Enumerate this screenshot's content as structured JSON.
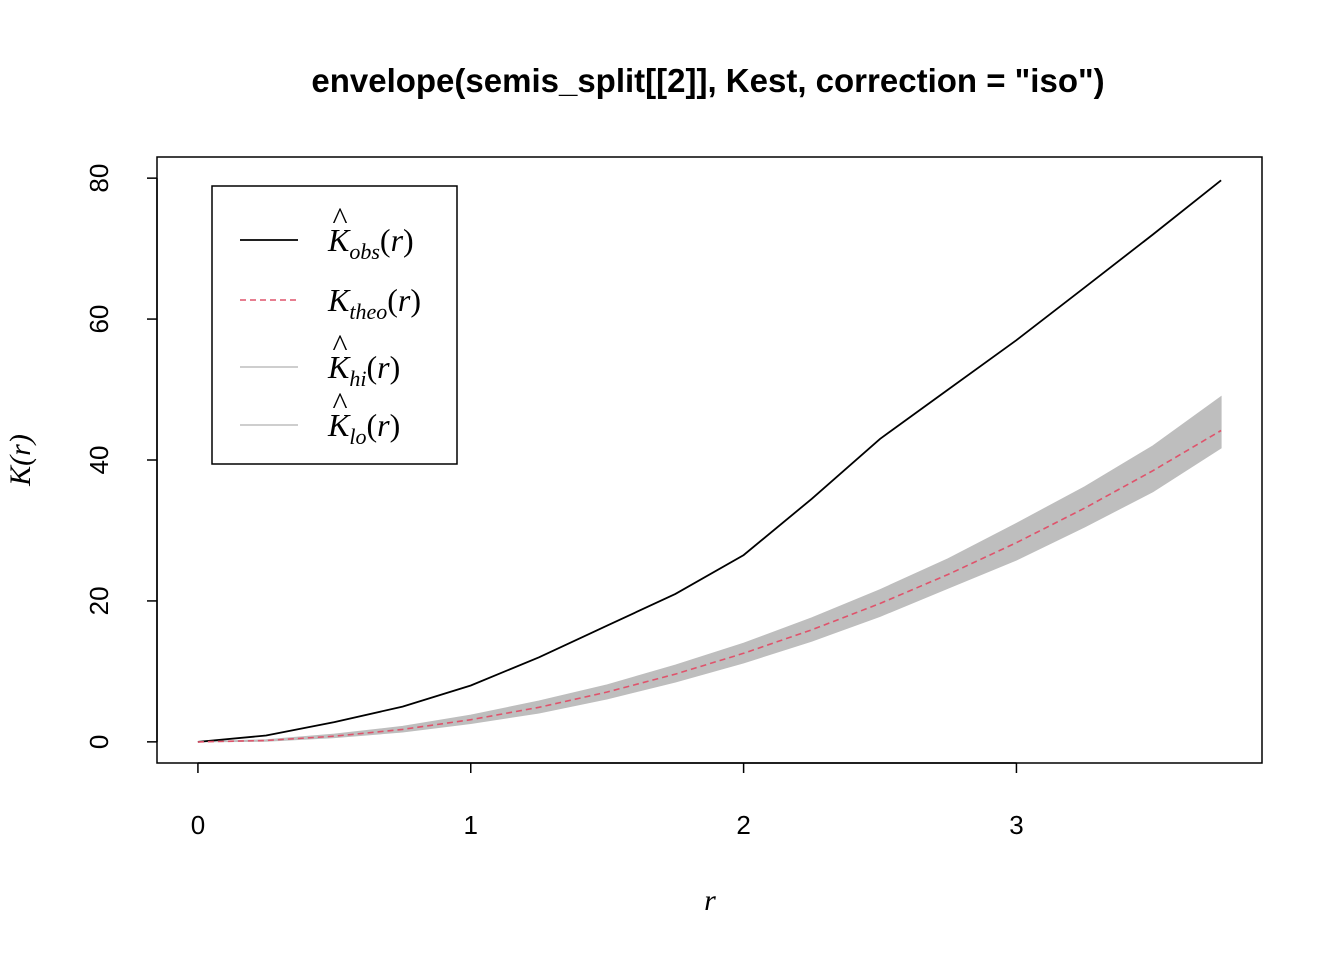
{
  "chart_data": {
    "type": "line",
    "title": "envelope(semis_split[[2]], Kest, correction = \"iso\")",
    "xlabel": "r",
    "ylabel": "K(r)",
    "xlim": [
      -0.15,
      3.9
    ],
    "ylim": [
      -3,
      83
    ],
    "xticks": [
      "0",
      "1",
      "2",
      "3"
    ],
    "yticks": [
      "0",
      "20",
      "40",
      "60",
      "80"
    ],
    "legend_position": "top-left",
    "x": [
      0,
      0.25,
      0.5,
      0.75,
      1.0,
      1.25,
      1.5,
      1.75,
      2.0,
      2.25,
      2.5,
      2.75,
      3.0,
      3.25,
      3.5,
      3.75
    ],
    "series": [
      {
        "name": "K_obs(r)",
        "legend": {
          "base": "K",
          "hat": true,
          "sub": "obs",
          "arg": "r"
        },
        "style": "solid",
        "color": "#000000",
        "values": [
          0,
          0.9,
          2.8,
          5.0,
          8.0,
          12.0,
          16.5,
          21.0,
          26.5,
          34.5,
          43.0,
          50.0,
          57.0,
          64.5,
          72.0,
          79.7
        ]
      },
      {
        "name": "K_theo(r)",
        "legend": {
          "base": "K",
          "hat": false,
          "sub": "theo",
          "arg": "r"
        },
        "style": "dashed",
        "color": "#DF536B",
        "values": [
          0,
          0.2,
          0.8,
          1.77,
          3.14,
          4.91,
          7.07,
          9.62,
          12.57,
          15.9,
          19.63,
          23.76,
          28.27,
          33.18,
          38.48,
          44.18
        ]
      },
      {
        "name": "K_hi(r)",
        "legend": {
          "base": "K",
          "hat": true,
          "sub": "hi",
          "arg": "r"
        },
        "style": "band-upper",
        "color": "#BEBEBE",
        "values": [
          0,
          0.3,
          1.1,
          2.2,
          3.8,
          5.8,
          8.1,
          10.9,
          14.0,
          17.6,
          21.6,
          26.0,
          31.0,
          36.2,
          42.0,
          49.0
        ]
      },
      {
        "name": "K_lo(r)",
        "legend": {
          "base": "K",
          "hat": true,
          "sub": "lo",
          "arg": "r"
        },
        "style": "band-lower",
        "color": "#BEBEBE",
        "values": [
          0,
          0.1,
          0.6,
          1.4,
          2.6,
          4.1,
          6.1,
          8.5,
          11.2,
          14.3,
          17.8,
          21.8,
          25.8,
          30.5,
          35.5,
          41.7
        ]
      }
    ]
  }
}
